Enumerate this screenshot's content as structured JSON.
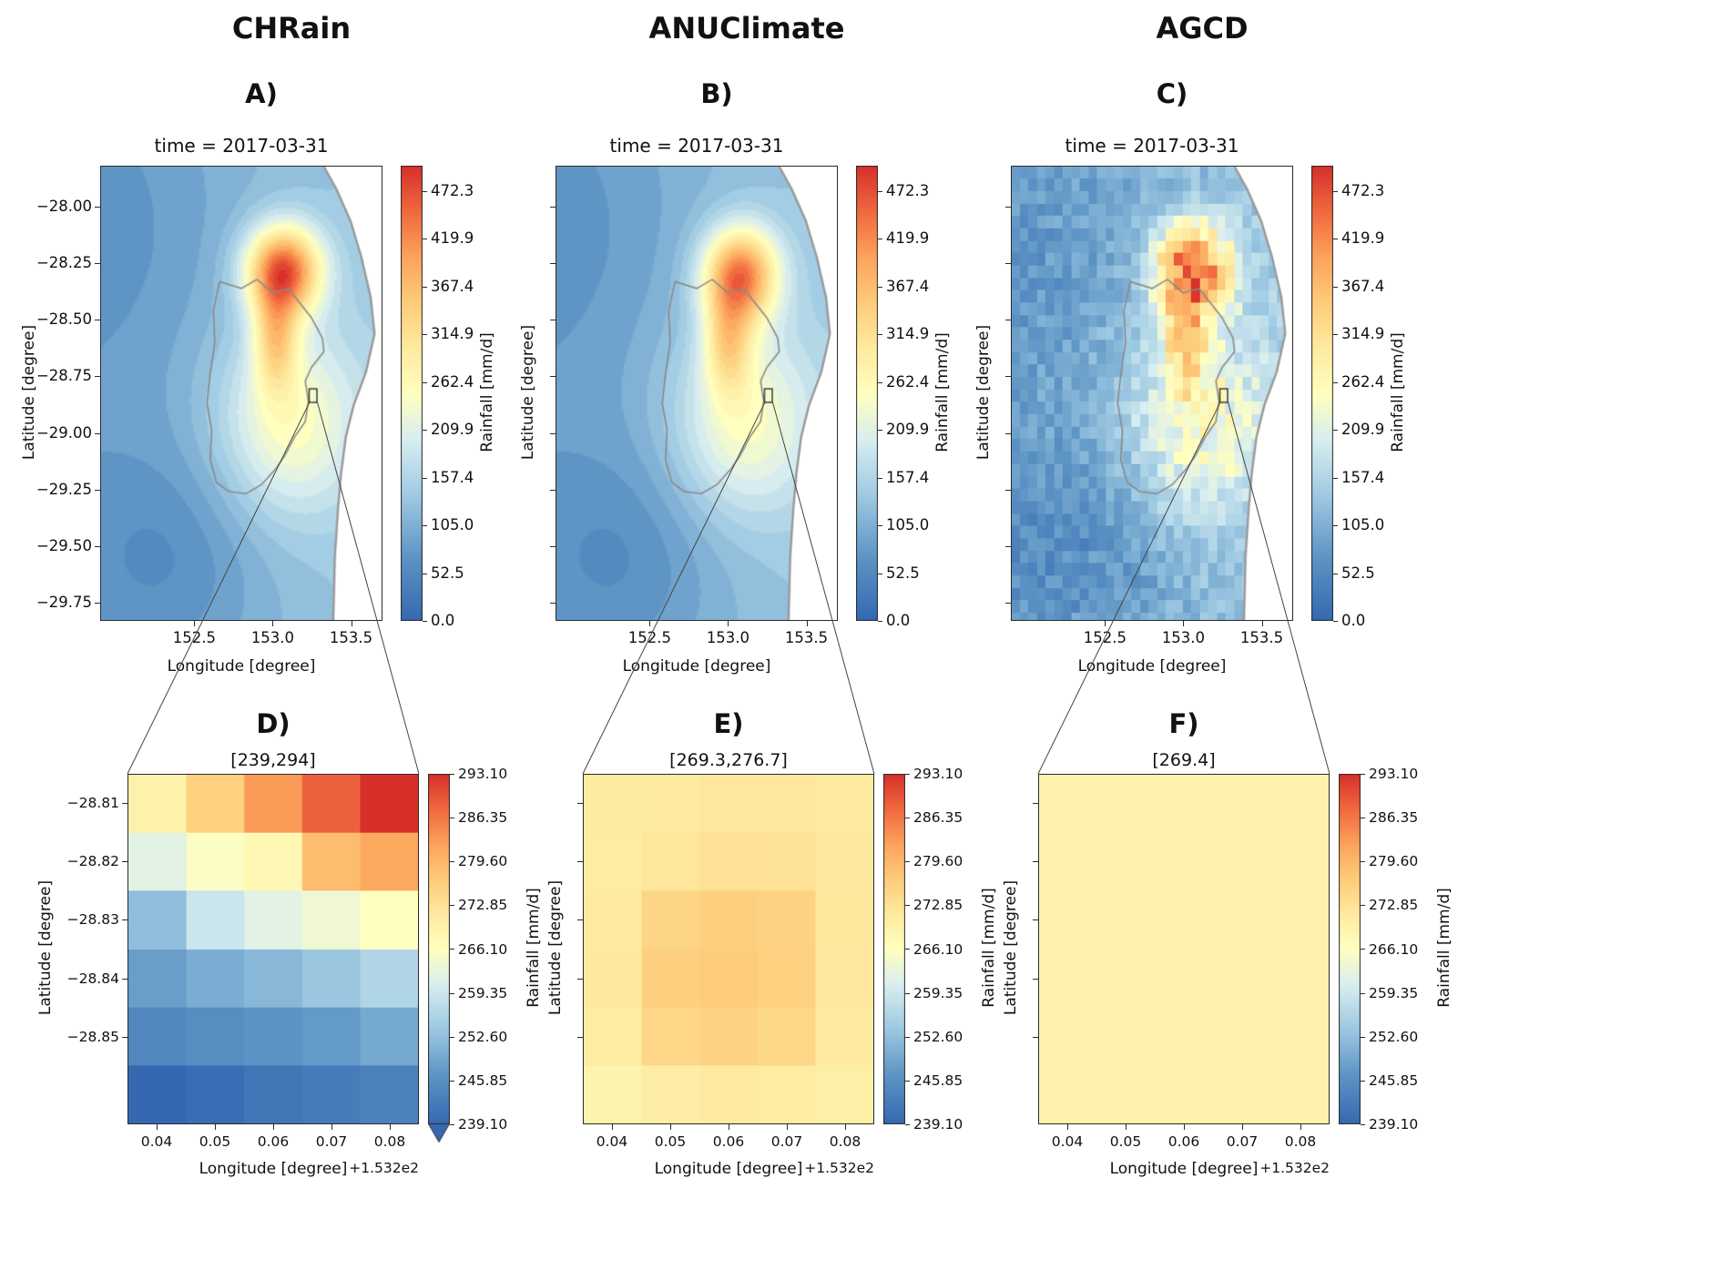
{
  "accent_colors": {
    "ocean": "#ffffff",
    "coast": "#9b9b9b",
    "catchment": "#8a8a8a",
    "zoom_box": "#111111",
    "connector": "#444444",
    "axis": "#2a2a2a"
  },
  "colormap": {
    "name": "RdYlBu_r",
    "stops": [
      {
        "t": 0.0,
        "color": "#3568b1"
      },
      {
        "t": 0.14,
        "color": "#5d94c4"
      },
      {
        "t": 0.28,
        "color": "#a0cbe3"
      },
      {
        "t": 0.4,
        "color": "#d9eef0"
      },
      {
        "t": 0.5,
        "color": "#ffffbf"
      },
      {
        "t": 0.6,
        "color": "#feeaa0"
      },
      {
        "t": 0.7,
        "color": "#fdcc7a"
      },
      {
        "t": 0.8,
        "color": "#fca35c"
      },
      {
        "t": 0.9,
        "color": "#f0693f"
      },
      {
        "t": 1.0,
        "color": "#d7302b"
      }
    ]
  },
  "map_shapes": {
    "coastline": [
      [
        153.33,
        -27.82
      ],
      [
        153.41,
        -27.92
      ],
      [
        153.5,
        -28.06
      ],
      [
        153.57,
        -28.22
      ],
      [
        153.63,
        -28.4
      ],
      [
        153.655,
        -28.56
      ],
      [
        153.6,
        -28.73
      ],
      [
        153.52,
        -28.88
      ],
      [
        153.47,
        -29.02
      ],
      [
        153.44,
        -29.18
      ],
      [
        153.42,
        -29.34
      ],
      [
        153.4,
        -29.55
      ],
      [
        153.39,
        -29.83
      ]
    ],
    "catchment": [
      [
        152.66,
        -28.33
      ],
      [
        152.8,
        -28.36
      ],
      [
        152.9,
        -28.32
      ],
      [
        153.0,
        -28.38
      ],
      [
        153.1,
        -28.36
      ],
      [
        153.17,
        -28.42
      ],
      [
        153.25,
        -28.49
      ],
      [
        153.32,
        -28.58
      ],
      [
        153.33,
        -28.64
      ],
      [
        153.25,
        -28.71
      ],
      [
        153.21,
        -28.77
      ],
      [
        153.23,
        -28.86
      ],
      [
        153.21,
        -28.95
      ],
      [
        153.14,
        -29.02
      ],
      [
        153.08,
        -29.1
      ],
      [
        153.02,
        -29.16
      ],
      [
        152.93,
        -29.23
      ],
      [
        152.83,
        -29.27
      ],
      [
        152.72,
        -29.26
      ],
      [
        152.64,
        -29.22
      ],
      [
        152.6,
        -29.12
      ],
      [
        152.61,
        -28.99
      ],
      [
        152.58,
        -28.87
      ],
      [
        152.6,
        -28.74
      ],
      [
        152.63,
        -28.6
      ],
      [
        152.62,
        -28.46
      ],
      [
        152.66,
        -28.33
      ]
    ]
  },
  "chart_data": [
    {
      "panel": "A)",
      "dataset": "CHRain",
      "type": "heatmap",
      "title": "time = 2017-03-31",
      "xlabel": "Longitude [degree]",
      "ylabel": "Latitude [degree]",
      "xlim": [
        151.9,
        153.7
      ],
      "ylim": [
        -29.83,
        -27.82
      ],
      "xticks": {
        "values": [
          152.5,
          153.0,
          153.5
        ],
        "labels": [
          "152.5",
          "153.0",
          "153.5"
        ]
      },
      "yticks": {
        "values": [
          -28.0,
          -28.25,
          -28.5,
          -28.75,
          -29.0,
          -29.25,
          -29.5,
          -29.75
        ],
        "labels": [
          "−28.00",
          "−28.25",
          "−28.50",
          "−28.75",
          "−29.00",
          "−29.25",
          "−29.50",
          "−29.75"
        ]
      },
      "colorbar": {
        "label": "Rainfall [mm/d]",
        "vmin": 0,
        "vmax": 500,
        "ticks": {
          "values": [
            472.3,
            419.9,
            367.4,
            314.9,
            262.4,
            209.9,
            157.4,
            105.0,
            52.5,
            0.0
          ],
          "labels": [
            "472.3",
            "419.9",
            "367.4",
            "314.9",
            "262.4",
            "209.9",
            "157.4",
            "105.0",
            "52.5",
            "0.0"
          ]
        }
      },
      "render": {
        "style": "smooth",
        "base": [
          95,
          45
        ],
        "blobs": [
          [
            153.07,
            -28.28,
            0.17,
            0.14,
            335
          ],
          [
            153.02,
            -28.58,
            0.1,
            0.16,
            165
          ],
          [
            153.1,
            -28.95,
            0.32,
            0.3,
            130
          ],
          [
            152.35,
            -29.55,
            0.45,
            0.35,
            -45
          ],
          [
            152.05,
            -28.1,
            0.5,
            0.5,
            -25
          ]
        ]
      },
      "zoom_box": {
        "x": [
          153.235,
          153.285
        ],
        "y": [
          -28.865,
          -28.805
        ]
      }
    },
    {
      "panel": "B)",
      "dataset": "ANUClimate",
      "type": "heatmap",
      "title": "time = 2017-03-31",
      "xlabel": "Longitude [degree]",
      "ylabel": "Latitude [degree]",
      "xlim": [
        151.9,
        153.7
      ],
      "ylim": [
        -29.83,
        -27.82
      ],
      "xticks": {
        "values": [
          152.5,
          153.0,
          153.5
        ],
        "labels": [
          "152.5",
          "153.0",
          "153.5"
        ]
      },
      "yticks": {
        "values": [
          -28.0,
          -28.25,
          -28.5,
          -28.75,
          -29.0,
          -29.25,
          -29.5,
          -29.75
        ],
        "labels": [
          "",
          "",
          "",
          "",
          "",
          "",
          "",
          ""
        ]
      },
      "colorbar": {
        "label": "Rainfall [mm/d]",
        "vmin": 0,
        "vmax": 500,
        "ticks": {
          "values": [
            472.3,
            419.9,
            367.4,
            314.9,
            262.4,
            209.9,
            157.4,
            105.0,
            52.5,
            0.0
          ],
          "labels": [
            "472.3",
            "419.9",
            "367.4",
            "314.9",
            "262.4",
            "209.9",
            "157.4",
            "105.0",
            "52.5",
            "0.0"
          ]
        }
      },
      "render": {
        "style": "smooth",
        "base": [
          95,
          45
        ],
        "blobs": [
          [
            153.08,
            -28.3,
            0.17,
            0.15,
            305
          ],
          [
            153.0,
            -28.6,
            0.11,
            0.16,
            150
          ],
          [
            153.1,
            -28.95,
            0.32,
            0.3,
            125
          ],
          [
            152.35,
            -29.55,
            0.45,
            0.35,
            -45
          ],
          [
            152.05,
            -28.1,
            0.5,
            0.5,
            -25
          ]
        ]
      },
      "zoom_box": {
        "x": [
          153.235,
          153.285
        ],
        "y": [
          -28.865,
          -28.805
        ]
      }
    },
    {
      "panel": "C)",
      "dataset": "AGCD",
      "type": "heatmap",
      "title": "time = 2017-03-31",
      "xlabel": "Longitude [degree]",
      "ylabel": "Latitude [degree]",
      "xlim": [
        151.9,
        153.7
      ],
      "ylim": [
        -29.83,
        -27.82
      ],
      "xticks": {
        "values": [
          152.5,
          153.0,
          153.5
        ],
        "labels": [
          "152.5",
          "153.0",
          "153.5"
        ]
      },
      "yticks": {
        "values": [
          -28.0,
          -28.25,
          -28.5,
          -28.75,
          -29.0,
          -29.25,
          -29.5,
          -29.75
        ],
        "labels": [
          "",
          "",
          "",
          "",
          "",
          "",
          "",
          ""
        ]
      },
      "colorbar": {
        "label": "Rainfall [mm/d]",
        "vmin": 0,
        "vmax": 500,
        "ticks": {
          "values": [
            472.3,
            419.9,
            367.4,
            314.9,
            262.4,
            209.9,
            157.4,
            105.0,
            52.5,
            0.0
          ],
          "labels": [
            "472.3",
            "419.9",
            "367.4",
            "314.9",
            "262.4",
            "209.9",
            "157.4",
            "105.0",
            "52.5",
            "0.0"
          ]
        }
      },
      "render": {
        "style": "coarse",
        "cell": 0.055,
        "noise": 26,
        "base": [
          95,
          45
        ],
        "blobs": [
          [
            153.07,
            -28.28,
            0.17,
            0.14,
            335
          ],
          [
            153.02,
            -28.58,
            0.1,
            0.16,
            165
          ],
          [
            153.1,
            -28.95,
            0.32,
            0.3,
            130
          ],
          [
            152.35,
            -29.55,
            0.45,
            0.35,
            -45
          ],
          [
            152.05,
            -28.1,
            0.5,
            0.5,
            -25
          ]
        ]
      },
      "zoom_box": {
        "x": [
          153.235,
          153.285
        ],
        "y": [
          -28.865,
          -28.805
        ]
      }
    },
    {
      "panel": "D)",
      "dataset": "CHRain",
      "type": "heatmap",
      "title": "[239,294]",
      "xlabel": "Longitude [degree]",
      "x_offset_label": "+1.532e2",
      "ylabel": "Latitude [degree]",
      "xlim": [
        153.235,
        153.285
      ],
      "ylim": [
        -28.865,
        -28.805
      ],
      "xticks": {
        "values": [
          153.24,
          153.25,
          153.26,
          153.27,
          153.28
        ],
        "labels": [
          "0.04",
          "0.05",
          "0.06",
          "0.07",
          "0.08"
        ]
      },
      "yticks": {
        "values": [
          -28.81,
          -28.82,
          -28.83,
          -28.84,
          -28.85
        ],
        "labels": [
          "−28.81",
          "−28.82",
          "−28.83",
          "−28.84",
          "−28.85"
        ]
      },
      "colorbar": {
        "label": "Rainfall [mm/d]",
        "vmin": 239.1,
        "vmax": 293.1,
        "extend": "min",
        "ticks": {
          "values": [
            293.1,
            286.35,
            279.6,
            272.85,
            266.1,
            259.35,
            252.6,
            245.85,
            239.1
          ],
          "labels": [
            "293.10",
            "286.35",
            "279.60",
            "272.85",
            "266.10",
            "259.35",
            "252.60",
            "245.85",
            "239.10"
          ]
        }
      },
      "grid": {
        "values": [
          [
            269.5,
            276.0,
            283.0,
            288.5,
            294.0
          ],
          [
            262.0,
            265.5,
            268.0,
            279.0,
            281.5
          ],
          [
            252.5,
            259.0,
            262.0,
            264.0,
            266.0
          ],
          [
            248.0,
            250.0,
            251.5,
            253.5,
            256.0
          ],
          [
            244.5,
            245.5,
            246.5,
            247.5,
            249.5
          ],
          [
            239.0,
            240.0,
            241.5,
            242.5,
            243.5
          ]
        ]
      }
    },
    {
      "panel": "E)",
      "dataset": "ANUClimate",
      "type": "heatmap",
      "title": "[269.3,276.7]",
      "xlabel": "Longitude [degree]",
      "x_offset_label": "+1.532e2",
      "ylabel": "Latitude [degree]",
      "xlim": [
        153.235,
        153.285
      ],
      "ylim": [
        -28.865,
        -28.805
      ],
      "xticks": {
        "values": [
          153.24,
          153.25,
          153.26,
          153.27,
          153.28
        ],
        "labels": [
          "0.04",
          "0.05",
          "0.06",
          "0.07",
          "0.08"
        ]
      },
      "yticks": {
        "values": [
          -28.81,
          -28.82,
          -28.83,
          -28.84,
          -28.85
        ],
        "labels": [
          "",
          "",
          "",
          "",
          ""
        ]
      },
      "colorbar": {
        "label": "Rainfall [mm/d]",
        "vmin": 239.1,
        "vmax": 293.1,
        "ticks": {
          "values": [
            293.1,
            286.35,
            279.6,
            272.85,
            266.1,
            259.35,
            252.6,
            245.85,
            239.1
          ],
          "labels": [
            "293.10",
            "286.35",
            "279.60",
            "272.85",
            "266.10",
            "259.35",
            "252.60",
            "245.85",
            "239.10"
          ]
        }
      },
      "grid": {
        "values": [
          [
            271.2,
            271.5,
            272.0,
            272.1,
            271.6
          ],
          [
            271.0,
            272.3,
            273.1,
            272.9,
            271.9
          ],
          [
            271.4,
            275.2,
            276.1,
            275.6,
            272.2
          ],
          [
            271.8,
            276.2,
            276.7,
            276.0,
            272.0
          ],
          [
            271.1,
            275.0,
            275.8,
            274.8,
            271.3
          ],
          [
            269.3,
            270.6,
            271.5,
            271.0,
            270.2
          ]
        ]
      }
    },
    {
      "panel": "F)",
      "dataset": "AGCD",
      "type": "heatmap",
      "title": "[269.4]",
      "xlabel": "Longitude [degree]",
      "x_offset_label": "+1.532e2",
      "ylabel": "Latitude [degree]",
      "xlim": [
        153.235,
        153.285
      ],
      "ylim": [
        -28.865,
        -28.805
      ],
      "xticks": {
        "values": [
          153.24,
          153.25,
          153.26,
          153.27,
          153.28
        ],
        "labels": [
          "0.04",
          "0.05",
          "0.06",
          "0.07",
          "0.08"
        ]
      },
      "yticks": {
        "values": [
          -28.81,
          -28.82,
          -28.83,
          -28.84,
          -28.85
        ],
        "labels": [
          "",
          "",
          "",
          "",
          ""
        ]
      },
      "colorbar": {
        "label": "Rainfall [mm/d]",
        "vmin": 239.1,
        "vmax": 293.1,
        "ticks": {
          "values": [
            293.1,
            286.35,
            279.6,
            272.85,
            266.1,
            259.35,
            252.6,
            245.85,
            239.1
          ],
          "labels": [
            "293.10",
            "286.35",
            "279.60",
            "272.85",
            "266.10",
            "259.35",
            "252.60",
            "245.85",
            "239.10"
          ]
        }
      },
      "grid": {
        "values": [
          [
            269.4
          ]
        ]
      }
    }
  ]
}
